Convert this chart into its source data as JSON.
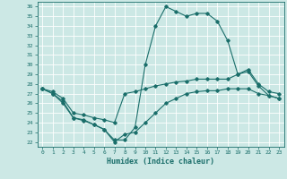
{
  "xlabel": "Humidex (Indice chaleur)",
  "background_color": "#cce8e5",
  "grid_color": "#ffffff",
  "line_color": "#1a6e6a",
  "xlim": [
    -0.5,
    23.5
  ],
  "ylim": [
    21.5,
    36.5
  ],
  "yticks": [
    22,
    23,
    24,
    25,
    26,
    27,
    28,
    29,
    30,
    31,
    32,
    33,
    34,
    35,
    36
  ],
  "xticks": [
    0,
    1,
    2,
    3,
    4,
    5,
    6,
    7,
    8,
    9,
    10,
    11,
    12,
    13,
    14,
    15,
    16,
    17,
    18,
    19,
    20,
    21,
    22,
    23
  ],
  "series": [
    {
      "x": [
        0,
        1,
        2,
        3,
        4,
        5,
        6,
        7,
        8,
        9,
        10,
        11,
        12,
        13,
        14,
        15,
        16,
        17,
        18,
        19,
        20,
        21,
        22,
        23
      ],
      "y": [
        27.5,
        27.0,
        26.0,
        24.5,
        24.2,
        23.8,
        23.3,
        22.2,
        22.2,
        23.5,
        30.0,
        34.0,
        36.0,
        35.5,
        35.0,
        35.3,
        35.3,
        34.5,
        32.5,
        29.0,
        29.3,
        27.8,
        26.8,
        26.5
      ]
    },
    {
      "x": [
        0,
        1,
        2,
        3,
        4,
        5,
        6,
        7,
        8,
        9,
        10,
        11,
        12,
        13,
        14,
        15,
        16,
        17,
        18,
        19,
        20,
        21,
        22,
        23
      ],
      "y": [
        27.5,
        27.2,
        26.5,
        25.0,
        24.8,
        24.5,
        24.3,
        24.0,
        27.0,
        27.2,
        27.5,
        27.8,
        28.0,
        28.2,
        28.3,
        28.5,
        28.5,
        28.5,
        28.5,
        29.0,
        29.5,
        28.0,
        27.2,
        27.0
      ]
    },
    {
      "x": [
        0,
        1,
        2,
        3,
        4,
        5,
        6,
        7,
        8,
        9,
        10,
        11,
        12,
        13,
        14,
        15,
        16,
        17,
        18,
        19,
        20,
        21,
        22,
        23
      ],
      "y": [
        27.5,
        27.0,
        26.2,
        24.5,
        24.3,
        23.8,
        23.3,
        22.0,
        22.8,
        23.0,
        24.0,
        25.0,
        26.0,
        26.5,
        27.0,
        27.2,
        27.3,
        27.3,
        27.5,
        27.5,
        27.5,
        27.0,
        26.8,
        26.5
      ]
    }
  ]
}
